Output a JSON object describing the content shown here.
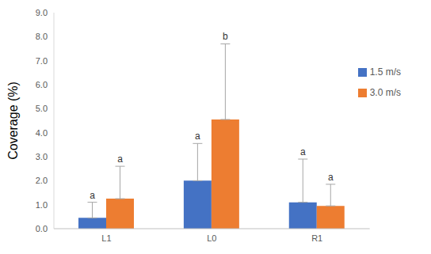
{
  "chart_data": {
    "type": "bar",
    "categories": [
      "L1",
      "L0",
      "R1"
    ],
    "y_label": "Coverage (%)",
    "ylim": [
      0,
      9
    ],
    "yticks": [
      {
        "value": 0,
        "label": "0.0"
      },
      {
        "value": 1,
        "label": "1.0"
      },
      {
        "value": 2,
        "label": "2.0"
      },
      {
        "value": 3,
        "label": "3.0"
      },
      {
        "value": 4,
        "label": "4.0"
      },
      {
        "value": 5,
        "label": "5.0"
      },
      {
        "value": 6,
        "label": "6.0"
      },
      {
        "value": 7,
        "label": "7.0"
      },
      {
        "value": 8,
        "label": "8.0"
      },
      {
        "value": 9,
        "label": "9.0"
      }
    ],
    "grid": false,
    "legend": "upper right",
    "series": [
      {
        "name": "1.5 m/s",
        "color": "#4472c4",
        "values": [
          0.45,
          2.0,
          1.1
        ],
        "errors": [
          0.65,
          1.55,
          1.8
        ],
        "letters": [
          "a",
          "a",
          "a"
        ]
      },
      {
        "name": "3.0 m/s",
        "color": "#ed7d31",
        "values": [
          1.25,
          4.55,
          0.95
        ],
        "errors": [
          1.35,
          3.15,
          0.9
        ],
        "letters": [
          "a",
          "b",
          "a"
        ]
      }
    ]
  }
}
